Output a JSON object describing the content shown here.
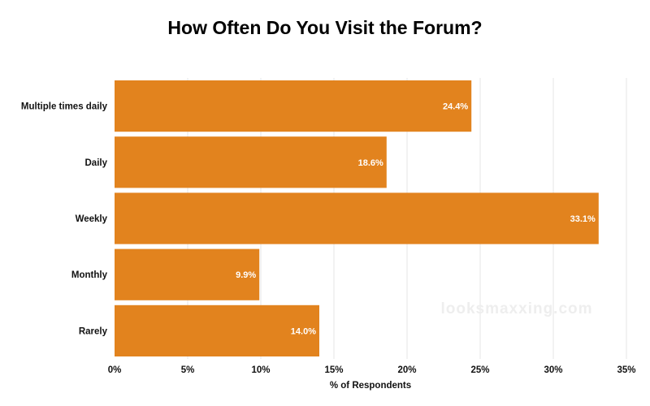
{
  "chart_data": {
    "type": "bar",
    "orientation": "horizontal",
    "title": "How Often Do You Visit the Forum?",
    "categories": [
      "Multiple times daily",
      "Daily",
      "Weekly",
      "Monthly",
      "Rarely"
    ],
    "values": [
      24.4,
      18.6,
      33.1,
      9.9,
      14.0
    ],
    "data_labels": [
      "24.4%",
      "18.6%",
      "33.1%",
      "9.9%",
      "14.0%"
    ],
    "xlabel": "% of Respondents",
    "ylabel": "",
    "xlim": [
      0,
      35
    ],
    "xticks": [
      0,
      5,
      10,
      15,
      20,
      25,
      30,
      35
    ],
    "xtick_labels": [
      "0%",
      "5%",
      "10%",
      "15%",
      "20%",
      "25%",
      "30%",
      "35%"
    ],
    "grid": "vertical",
    "legend": "none",
    "bar_color": "#e2831e",
    "grid_color": "#e6e6e6"
  },
  "watermark": "looksmaxxing.com"
}
